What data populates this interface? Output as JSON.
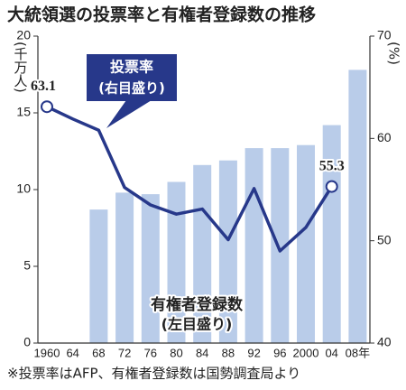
{
  "chart_data": {
    "type": "bar_line",
    "title": "大統領選の投票率と有権者登録数の推移",
    "ylabel": "(千万人)",
    "y2label": "(%)",
    "categories": [
      "1960",
      "64",
      "68",
      "72",
      "76",
      "80",
      "84",
      "88",
      "92",
      "96",
      "2000",
      "04",
      "08年"
    ],
    "series": [
      {
        "name": "有権者登録数",
        "type": "bar",
        "color": "#b9cce9",
        "axis": "y",
        "values": [
          null,
          null,
          8.7,
          9.8,
          9.7,
          10.5,
          11.6,
          11.9,
          12.7,
          12.7,
          12.9,
          14.2,
          17.8
        ]
      },
      {
        "name": "投票率",
        "type": "line",
        "color": "#27388a",
        "axis": "y2",
        "values": [
          63.1,
          61.9,
          60.8,
          55.2,
          53.5,
          52.6,
          53.1,
          50.1,
          55.1,
          49.0,
          51.3,
          55.3,
          null
        ],
        "value_labels": [
          "63.1",
          null,
          null,
          null,
          null,
          null,
          null,
          null,
          null,
          null,
          null,
          "55.3",
          null
        ]
      }
    ],
    "ylim": [
      0,
      20
    ],
    "yticks": [
      0,
      5,
      10,
      15,
      20
    ],
    "y2lim": [
      40,
      70
    ],
    "y2ticks": [
      40,
      50,
      60,
      70
    ],
    "annotations": [
      "投票率",
      "(右目盛り)",
      "有権者登録数",
      "(左目盛り)"
    ],
    "footnote": "※投票率はAFP、有権者登録数は国勢調査局より"
  }
}
